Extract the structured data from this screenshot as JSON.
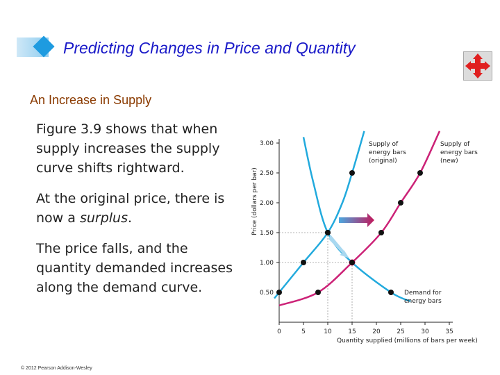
{
  "slide": {
    "title": "Predicting Changes in Price and Quantity",
    "subtitle": "An Increase in Supply",
    "paragraph1": "Figure 3.9 shows that when supply increases the supply curve shifts rightward.",
    "paragraph2_lead": "At the original price, there is now a ",
    "paragraph2_emph": "surplus",
    "paragraph2_end": ".",
    "paragraph3": "The price falls, and the quantity demanded increases along the demand curve.",
    "footer": "© 2012 Pearson Addison-Wesley",
    "colors": {
      "title": "#1a1ac8",
      "subtitle": "#8a3a00",
      "supply_original": "#22aadd",
      "supply_new": "#cc2277",
      "demand": "#22aadd",
      "shift_arrow": "#c2185b",
      "highlight_price": "#d81b60"
    },
    "nav_icon": "four-way-arrows-icon"
  },
  "chart_data": {
    "type": "line",
    "xlabel": "Quantity supplied (millions of bars per week)",
    "ylabel": "Price (dollars per bar)",
    "xlim": [
      0,
      35
    ],
    "ylim": [
      0,
      3.0
    ],
    "x_ticks": [
      0,
      5,
      10,
      15,
      20,
      25,
      30,
      35
    ],
    "x_tick_labels": [
      "0",
      "5",
      "10",
      "15",
      "20",
      "25",
      "30",
      "35"
    ],
    "y_ticks": [
      0.5,
      1.0,
      1.5,
      2.0,
      2.5,
      3.0
    ],
    "y_tick_labels": [
      "0.50",
      "1.00",
      "1.50",
      "2.00",
      "2.50",
      "3.00"
    ],
    "highlight_x": 15,
    "highlight_y": 1.0,
    "series": [
      {
        "name": "Supply of energy bars (original)",
        "label_line1": "Supply of",
        "label_line2": "energy bars",
        "label_line3": "(original)",
        "points": [
          [
            0,
            0.5
          ],
          [
            5,
            1.0
          ],
          [
            10,
            1.5
          ],
          [
            15,
            2.5
          ]
        ],
        "curve": [
          [
            -1,
            0.4
          ],
          [
            0,
            0.5
          ],
          [
            5,
            1.0
          ],
          [
            10,
            1.5
          ],
          [
            13,
            2.0
          ],
          [
            15,
            2.5
          ],
          [
            17.5,
            3.2
          ]
        ]
      },
      {
        "name": "Supply of energy bars (new)",
        "label_line1": "Supply of",
        "label_line2": "energy bars",
        "label_line3": "(new)",
        "points": [
          [
            8,
            0.5
          ],
          [
            15,
            1.0
          ],
          [
            21,
            1.5
          ],
          [
            25,
            2.0
          ],
          [
            29,
            2.5
          ]
        ],
        "curve": [
          [
            0,
            0.28
          ],
          [
            8,
            0.5
          ],
          [
            15,
            1.0
          ],
          [
            21,
            1.5
          ],
          [
            25,
            2.0
          ],
          [
            29,
            2.5
          ],
          [
            33,
            3.2
          ]
        ]
      },
      {
        "name": "Demand for energy bars",
        "label_line1": "Demand for",
        "label_line2": "energy bars",
        "points": [
          [
            10,
            1.5
          ],
          [
            15,
            1.0
          ],
          [
            23,
            0.5
          ]
        ],
        "curve": [
          [
            5,
            3.1
          ],
          [
            7,
            2.35
          ],
          [
            10,
            1.5
          ],
          [
            15,
            1.0
          ],
          [
            23,
            0.5
          ],
          [
            27,
            0.35
          ]
        ]
      }
    ]
  }
}
